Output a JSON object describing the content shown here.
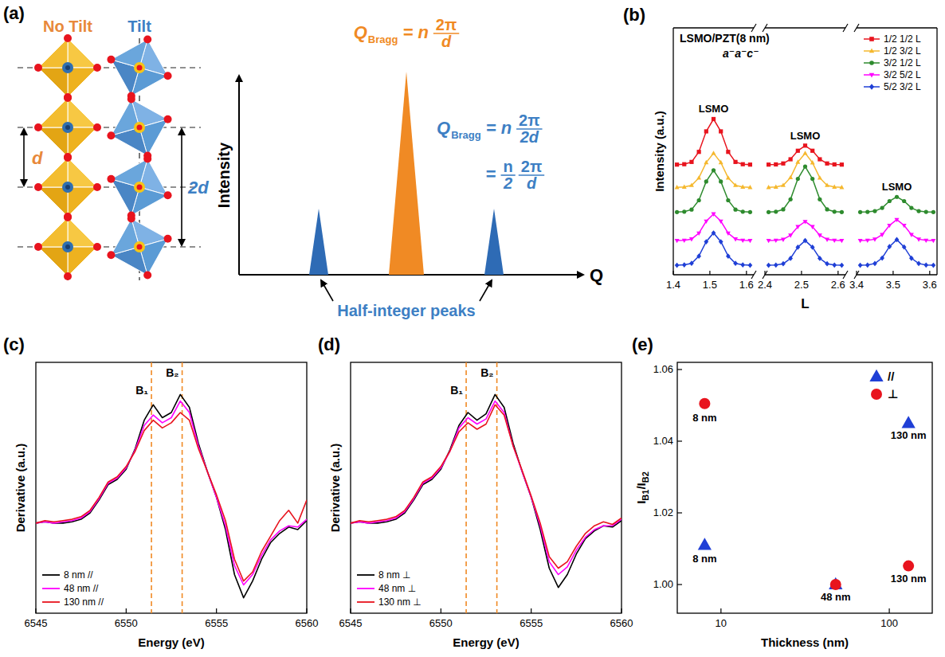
{
  "diagram": {
    "label": "(a)",
    "no_tilt": "No Tilt",
    "tilt": "Tilt",
    "d": "d",
    "two_d": "2d",
    "y_axis": "Intensity",
    "x_axis": "Q",
    "peaks_label": "Half-integer peaks",
    "orange_formula": {
      "symbol": "Q",
      "sub": "Bragg",
      "eq": "= n",
      "num": "2π",
      "den": "d"
    },
    "blue_formula": {
      "symbol": "Q",
      "sub": "Bragg",
      "eq": "= n",
      "num": "2π",
      "den": "2d",
      "eq2": "=",
      "num2": "n",
      "den2": "2",
      "num3": "2π",
      "den3": "d"
    }
  },
  "chart_data": [
    {
      "type": "line",
      "label": "(b)",
      "title": "LSMO/PZT(8 nm)",
      "subtitle": "a⁻a⁻c⁻",
      "annotations": [
        "LSMO",
        "LSMO",
        "LSMO"
      ],
      "xlabel": "L",
      "ylabel": "Intensity (a.u.)",
      "xlim": [
        [
          1.4,
          1.62
        ],
        [
          2.4,
          2.62
        ],
        [
          3.4,
          3.62
        ]
      ],
      "xticks": [
        [
          1.4,
          1.5,
          1.6
        ],
        [
          2.4,
          2.5,
          2.6
        ],
        [
          3.4,
          3.5,
          3.6
        ]
      ],
      "ylim": [
        0,
        130
      ],
      "tick_labels": "x",
      "legend": "upper right",
      "x": [
        1.41,
        1.43,
        1.45,
        1.47,
        1.49,
        1.51,
        1.53,
        1.55,
        1.57,
        1.59,
        1.61,
        2.41,
        2.43,
        2.45,
        2.47,
        2.49,
        2.51,
        2.53,
        2.55,
        2.57,
        2.59,
        2.61,
        3.41,
        3.43,
        3.45,
        3.47,
        3.49,
        3.51,
        3.53,
        3.55,
        3.57,
        3.59,
        3.61
      ],
      "series": [
        {
          "name": "1/2 1/2 L",
          "color": "#e8141e",
          "marker": "square",
          "values": [
            58,
            58.2,
            59.4,
            64.7,
            75.5,
            82,
            75.5,
            64.7,
            59.4,
            58.2,
            58,
            58,
            58.1,
            58.6,
            60.8,
            65.3,
            68,
            65.3,
            60.8,
            58.6,
            58.1,
            58,
            null,
            null,
            null,
            null,
            null,
            null,
            null,
            null,
            null,
            null,
            null
          ]
        },
        {
          "name": "1/2 3/2 L",
          "color": "#f5b82e",
          "marker": "triangle-up",
          "values": [
            46,
            46.2,
            47.1,
            51,
            59.1,
            64,
            59.1,
            51,
            47.1,
            46.2,
            46,
            46,
            46.2,
            47.1,
            51.2,
            59.3,
            64,
            59,
            51,
            47.1,
            46.2,
            46,
            null,
            null,
            null,
            null,
            null,
            null,
            null,
            null,
            null,
            null,
            null
          ]
        },
        {
          "name": "3/2 1/2 L",
          "color": "#2e8b2e",
          "marker": "circle",
          "values": [
            33,
            33.2,
            34.3,
            39.2,
            49.1,
            55,
            49.1,
            39.2,
            34.3,
            33.2,
            33,
            33,
            33.2,
            34.4,
            39.7,
            50.5,
            57,
            50.5,
            39.7,
            34.4,
            33.2,
            33,
            33,
            33.1,
            33.5,
            35.2,
            38.8,
            41,
            38.8,
            35.2,
            33.5,
            33.1,
            33
          ]
        },
        {
          "name": "3/2 5/2 L",
          "color": "#ff00ff",
          "marker": "triangle-down",
          "values": [
            18,
            18.1,
            18.8,
            21.9,
            28.2,
            32,
            28.2,
            21.9,
            18.8,
            18.1,
            18,
            18,
            18.1,
            18.6,
            20.8,
            25.3,
            28,
            25.3,
            20.8,
            18.6,
            18.1,
            18,
            18,
            18.1,
            18.7,
            21.1,
            26,
            29,
            26,
            21.1,
            18.7,
            18.1,
            18
          ]
        },
        {
          "name": "5/2 3/2 L",
          "color": "#1f3fd6",
          "marker": "diamond",
          "values": [
            5,
            5.2,
            6,
            9.8,
            17.4,
            22,
            17.4,
            9.8,
            6,
            5.2,
            5,
            5,
            5.1,
            5.8,
            8.6,
            14.5,
            18,
            14.5,
            8.6,
            5.8,
            5.1,
            5,
            5,
            5.1,
            5.9,
            8.8,
            14.8,
            18.5,
            14.6,
            8.7,
            5.9,
            5.1,
            5
          ]
        }
      ]
    },
    {
      "type": "line",
      "label": "(c)",
      "xlabel": "Energy (eV)",
      "ylabel": "Derivative (a.u.)",
      "xlim": [
        6545,
        6560
      ],
      "xticks": [
        6545,
        6550,
        6555,
        6560
      ],
      "ylim": [
        -0.7,
        1.25
      ],
      "tick_labels": "x",
      "legend": "lower left",
      "reference_lines": [
        {
          "x": 6551.4,
          "label": "B₁"
        },
        {
          "x": 6553.1,
          "label": "B₂"
        }
      ],
      "x": [
        6545,
        6545.5,
        6546,
        6546.5,
        6547,
        6547.5,
        6548,
        6548.5,
        6549,
        6549.5,
        6550,
        6550.5,
        6551,
        6551.5,
        6552,
        6552.5,
        6553,
        6553.5,
        6554,
        6554.5,
        6555,
        6555.5,
        6556,
        6556.5,
        6557,
        6557.5,
        6558,
        6558.5,
        6559,
        6559.5,
        6560
      ],
      "series": [
        {
          "name": "8 nm //",
          "color": "#000000",
          "values": [
            0,
            0.01,
            0,
            0,
            0.01,
            0.03,
            0.08,
            0.18,
            0.3,
            0.34,
            0.42,
            0.58,
            0.8,
            0.92,
            0.82,
            0.86,
            1,
            0.9,
            0.62,
            0.4,
            0.2,
            -0.05,
            -0.4,
            -0.58,
            -0.45,
            -0.28,
            -0.15,
            -0.08,
            -0.03,
            -0.05,
            0.02
          ]
        },
        {
          "name": "48 nm //",
          "color": "#ff00ff",
          "values": [
            0,
            0.01,
            0,
            0.01,
            0.02,
            0.04,
            0.09,
            0.19,
            0.31,
            0.35,
            0.43,
            0.57,
            0.76,
            0.84,
            0.78,
            0.82,
            0.95,
            0.86,
            0.6,
            0.4,
            0.2,
            -0.02,
            -0.33,
            -0.48,
            -0.4,
            -0.25,
            -0.13,
            -0.06,
            -0.02,
            -0.03,
            0.03
          ]
        },
        {
          "name": "130 nm //",
          "color": "#e8141e",
          "values": [
            0,
            0.02,
            0.01,
            0.02,
            0.03,
            0.05,
            0.1,
            0.2,
            0.32,
            0.36,
            0.44,
            0.56,
            0.72,
            0.8,
            0.74,
            0.78,
            0.86,
            0.8,
            0.58,
            0.4,
            0.22,
            0.02,
            -0.28,
            -0.45,
            -0.38,
            -0.22,
            -0.1,
            0.02,
            0.1,
            0,
            0.18
          ]
        }
      ]
    },
    {
      "type": "line",
      "label": "(d)",
      "xlabel": "Energy (eV)",
      "ylabel": "Derivative (a.u.)",
      "xlim": [
        6545,
        6560
      ],
      "xticks": [
        6545,
        6550,
        6555,
        6560
      ],
      "ylim": [
        -0.7,
        1.25
      ],
      "tick_labels": "x",
      "legend": "lower left",
      "reference_lines": [
        {
          "x": 6551.4,
          "label": "B₁"
        },
        {
          "x": 6553.1,
          "label": "B₂"
        }
      ],
      "x": [
        6545,
        6545.5,
        6546,
        6546.5,
        6547,
        6547.5,
        6548,
        6548.5,
        6549,
        6549.5,
        6550,
        6550.5,
        6551,
        6551.5,
        6552,
        6552.5,
        6553,
        6553.5,
        6554,
        6554.5,
        6555,
        6555.5,
        6556,
        6556.5,
        6557,
        6557.5,
        6558,
        6558.5,
        6559,
        6559.5,
        6560
      ],
      "series": [
        {
          "name": "8 nm ⊥",
          "color": "#000000",
          "values": [
            0,
            0.01,
            0,
            0,
            0.01,
            0.03,
            0.08,
            0.18,
            0.3,
            0.34,
            0.42,
            0.57,
            0.76,
            0.86,
            0.8,
            0.85,
            1,
            0.9,
            0.62,
            0.4,
            0.2,
            -0.05,
            -0.35,
            -0.5,
            -0.4,
            -0.24,
            -0.12,
            -0.06,
            -0.02,
            -0.03,
            0.02
          ]
        },
        {
          "name": "48 nm ⊥",
          "color": "#ff00ff",
          "values": [
            0,
            0.01,
            0,
            0.01,
            0.02,
            0.04,
            0.09,
            0.19,
            0.31,
            0.35,
            0.43,
            0.56,
            0.74,
            0.82,
            0.77,
            0.81,
            0.95,
            0.86,
            0.6,
            0.4,
            0.2,
            -0.02,
            -0.3,
            -0.4,
            -0.34,
            -0.21,
            -0.11,
            -0.05,
            -0.02,
            -0.02,
            0.03
          ]
        },
        {
          "name": "130 nm ⊥",
          "color": "#e8141e",
          "values": [
            0,
            0.02,
            0.01,
            0.02,
            0.03,
            0.05,
            0.1,
            0.2,
            0.32,
            0.36,
            0.44,
            0.56,
            0.71,
            0.78,
            0.73,
            0.77,
            0.92,
            0.84,
            0.6,
            0.41,
            0.21,
            0,
            -0.26,
            -0.35,
            -0.3,
            -0.18,
            -0.08,
            -0.02,
            0.01,
            -0.01,
            0.04
          ]
        }
      ]
    },
    {
      "type": "scatter",
      "label": "(e)",
      "xlabel": "Thickness (nm)",
      "ylabel_parts": [
        "I",
        "B1",
        "/I",
        "B2"
      ],
      "log": "x",
      "xlim": [
        5.5,
        180
      ],
      "xticks": [
        10,
        100
      ],
      "ylim": [
        0.992,
        1.062
      ],
      "yticks": [
        {
          "value": 1,
          "label": "1.00"
        },
        {
          "value": 1.02,
          "label": "1.02"
        },
        {
          "value": 1.04,
          "label": "1.04"
        },
        {
          "value": 1.06,
          "label": "1.06"
        }
      ],
      "legend": "upper right",
      "x": [
        8,
        48,
        130
      ],
      "series": [
        {
          "name": "//",
          "color": "#1f3fd6",
          "marker": "triangle-up",
          "values": [
            1.011,
            1,
            1.045
          ]
        },
        {
          "name": "⊥",
          "color": "#e8141e",
          "marker": "circle",
          "values": [
            1.0505,
            1,
            1.0052
          ]
        }
      ],
      "annotations": [
        {
          "text": "8 nm",
          "x": 8,
          "y": 1.0456
        },
        {
          "text": "8 nm",
          "x": 8,
          "y": 1.0062
        },
        {
          "text": "48 nm",
          "x": 48,
          "y": 0.9956
        },
        {
          "text": "130 nm",
          "x": 130,
          "y": 1.0406
        },
        {
          "text": "130 nm",
          "x": 130,
          "y": 1.0006
        }
      ]
    }
  ]
}
